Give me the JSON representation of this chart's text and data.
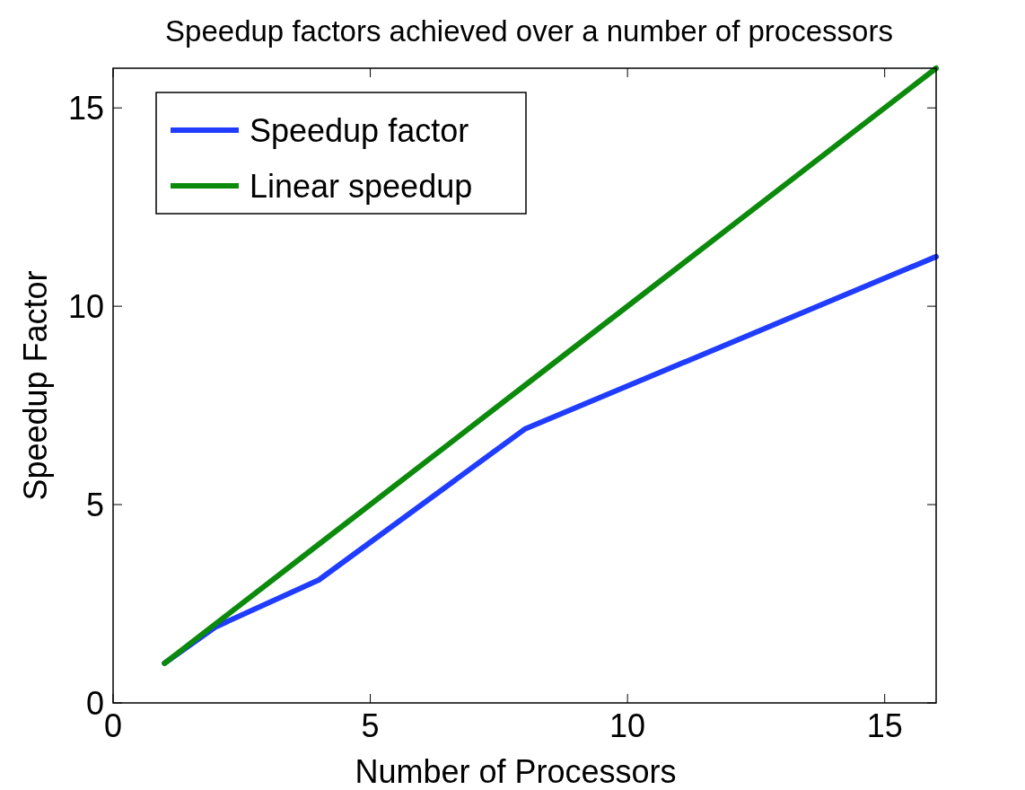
{
  "chart_data": {
    "type": "line",
    "title": "Speedup factors achieved over a number of processors",
    "xlabel": "Number of Processors",
    "ylabel": "Speedup Factor",
    "x": [
      1,
      2,
      4,
      8,
      16
    ],
    "series": [
      {
        "name": "Speedup factor",
        "color": "#1f3cff",
        "values": [
          1,
          1.92,
          3.1,
          6.9,
          11.25
        ]
      },
      {
        "name": "Linear speedup",
        "color": "#0b8a0b",
        "values": [
          1,
          2,
          4,
          8,
          16
        ]
      }
    ],
    "xlim": [
      0,
      16
    ],
    "xticks": [
      0,
      5,
      10,
      15
    ],
    "ylim": [
      0,
      16
    ],
    "yticks": [
      0,
      5,
      10,
      15
    ],
    "grid": false,
    "legend": "top left",
    "marker": "none",
    "line_style": "solid"
  }
}
